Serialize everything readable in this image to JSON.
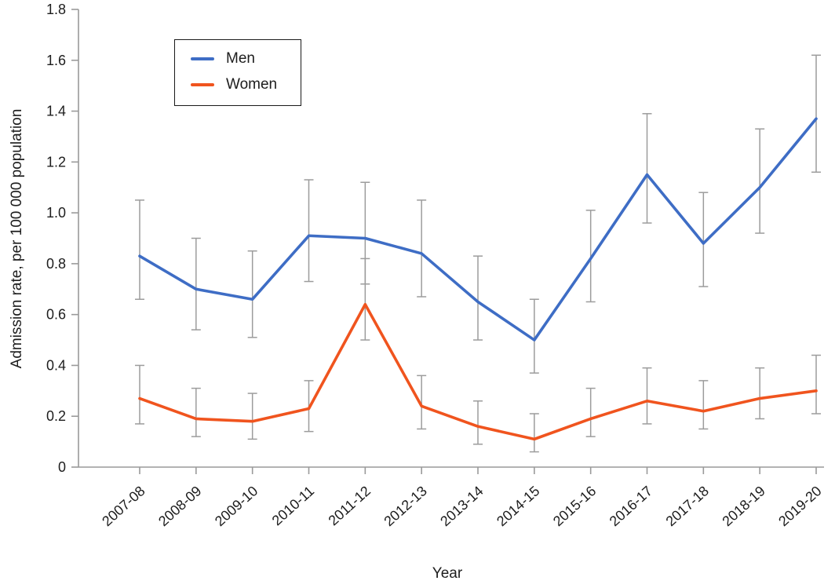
{
  "chart_data": {
    "type": "line",
    "title": "",
    "xlabel": "Year",
    "ylabel": "Admission rate, per 100 000 population",
    "ylim": [
      0,
      1.8
    ],
    "yticks": [
      0,
      0.2,
      0.4,
      0.6,
      0.8,
      1.0,
      1.2,
      1.4,
      1.6,
      1.8
    ],
    "ytick_labels": [
      "0",
      "0.2",
      "0.4",
      "0.6",
      "0.8",
      "1.0",
      "1.2",
      "1.4",
      "1.6",
      "1.8"
    ],
    "categories": [
      "2007-08",
      "2008-09",
      "2009-10",
      "2010-11",
      "2011-12",
      "2012-13",
      "2013-14",
      "2014-15",
      "2015-16",
      "2016-17",
      "2017-18",
      "2018-19",
      "2019-20"
    ],
    "grid": false,
    "legend_position": "upper-left",
    "axis_color": "#9a9a9a",
    "text_color": "#1d1d1d",
    "error_bar_color": "#9c9c9c",
    "series": [
      {
        "name": "Men",
        "color": "#3e6dc5",
        "values": [
          0.83,
          0.7,
          0.66,
          0.91,
          0.9,
          0.84,
          0.65,
          0.5,
          0.82,
          1.15,
          0.88,
          1.1,
          1.37
        ],
        "err_low": [
          0.66,
          0.54,
          0.51,
          0.73,
          0.72,
          0.67,
          0.5,
          0.37,
          0.65,
          0.96,
          0.71,
          0.92,
          1.16
        ],
        "err_high": [
          1.05,
          0.9,
          0.85,
          1.13,
          1.12,
          1.05,
          0.83,
          0.66,
          1.01,
          1.39,
          1.08,
          1.33,
          1.62
        ]
      },
      {
        "name": "Women",
        "color": "#f0541e",
        "values": [
          0.27,
          0.19,
          0.18,
          0.23,
          0.64,
          0.24,
          0.16,
          0.11,
          0.19,
          0.26,
          0.22,
          0.27,
          0.3
        ],
        "err_low": [
          0.17,
          0.12,
          0.11,
          0.14,
          0.5,
          0.15,
          0.09,
          0.06,
          0.12,
          0.17,
          0.15,
          0.19,
          0.21
        ],
        "err_high": [
          0.4,
          0.31,
          0.29,
          0.34,
          0.82,
          0.36,
          0.26,
          0.21,
          0.31,
          0.39,
          0.34,
          0.39,
          0.44
        ]
      }
    ]
  }
}
